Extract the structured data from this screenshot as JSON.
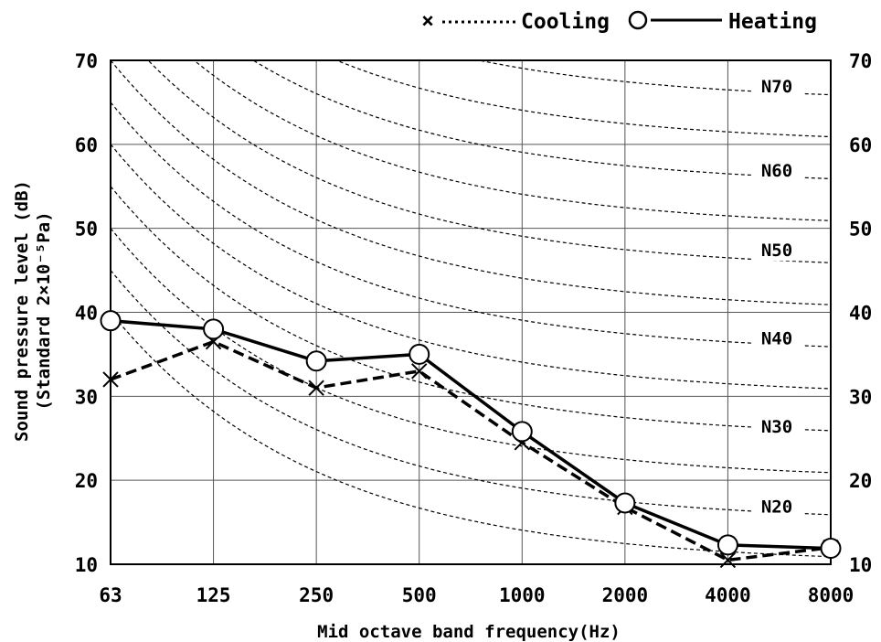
{
  "chart_data": {
    "type": "line",
    "xlabel": "Mid octave band frequency(Hz)",
    "ylabel_line1": "Sound pressure level (dB)",
    "ylabel_line2": "(Standard 2×10⁻⁵Pa)",
    "categories": [
      "63",
      "125",
      "250",
      "500",
      "1000",
      "2000",
      "4000",
      "8000"
    ],
    "ylim": [
      10,
      70
    ],
    "yticks": [
      10,
      20,
      30,
      40,
      50,
      60,
      70
    ],
    "grid": true,
    "legend_position": "top-right",
    "series": [
      {
        "name": "Cooling",
        "marker": "x",
        "line": "dashed",
        "values": [
          32,
          36.5,
          31,
          33,
          24.5,
          16.8,
          10.5,
          12
        ]
      },
      {
        "name": "Heating",
        "marker": "o",
        "line": "solid",
        "values": [
          39,
          38,
          34.2,
          35,
          25.8,
          17.3,
          12.3,
          11.9
        ]
      }
    ],
    "nc_curves": {
      "labels": [
        "N70",
        "N60",
        "N50",
        "N40",
        "N30",
        "N20"
      ],
      "label_values": [
        66.5,
        56.5,
        47,
        36.5,
        26,
        16.5
      ],
      "level_values": [
        75,
        70,
        65,
        60,
        55,
        50,
        45,
        40,
        35,
        30,
        25,
        20,
        15
      ]
    }
  }
}
